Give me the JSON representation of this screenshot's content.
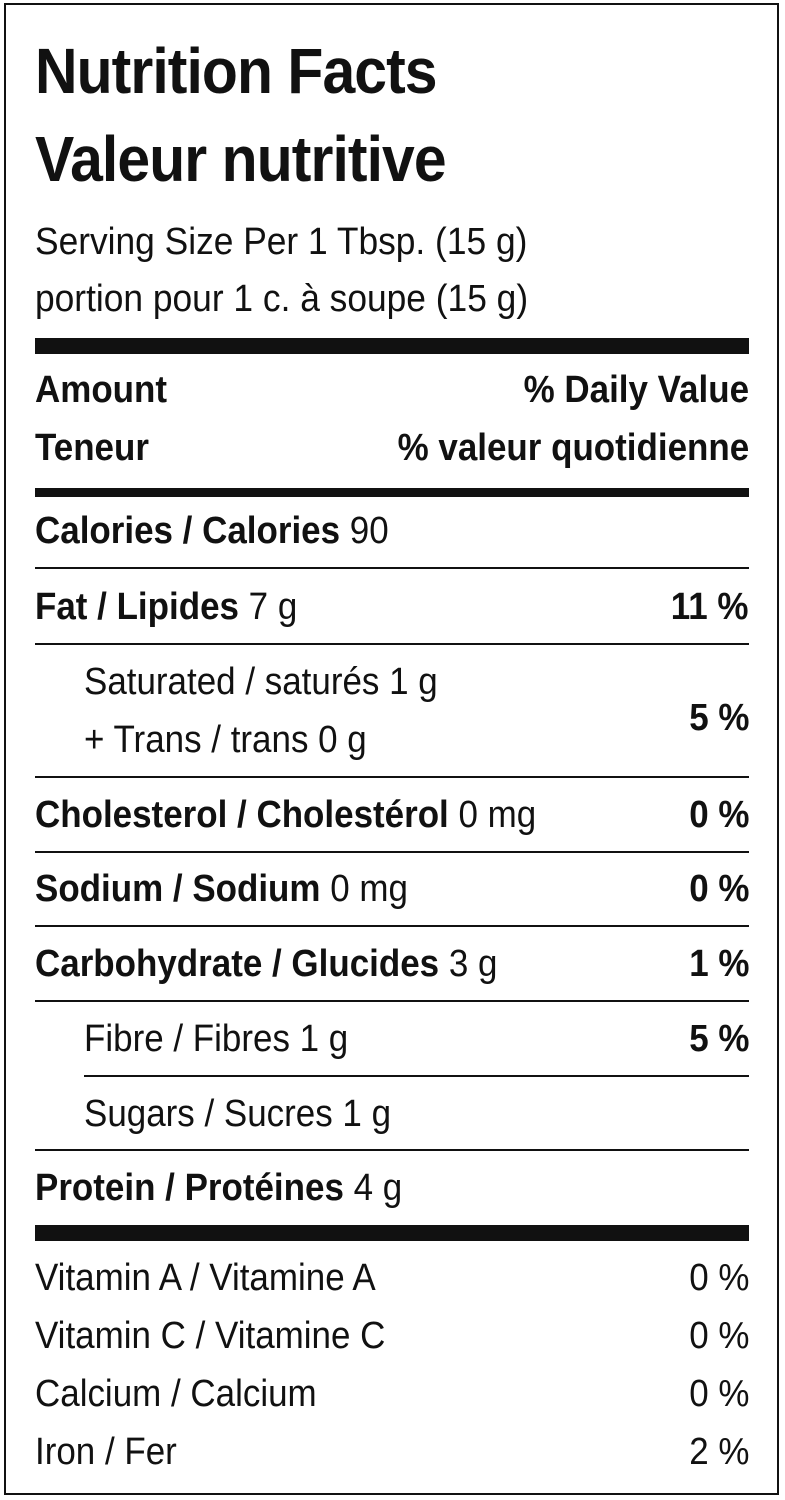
{
  "title_en": "Nutrition Facts",
  "title_fr": "Valeur nutritive",
  "serving_en": "Serving Size Per 1 Tbsp. (15 g)",
  "serving_fr": "portion pour 1 c. à soupe (15 g)",
  "header": {
    "amount_en": "Amount",
    "amount_fr": "Teneur",
    "dv_en": "% Daily Value",
    "dv_fr": "% valeur quotidienne"
  },
  "calories": {
    "label": "Calories / Calories",
    "value": "90"
  },
  "fat": {
    "label": "Fat / Lipides",
    "amount": "7 g",
    "dv": "11 %"
  },
  "saturated": {
    "label": "Saturated / saturés",
    "amount": "1 g"
  },
  "trans": {
    "label": "+ Trans / trans",
    "amount": "0 g"
  },
  "sat_trans_dv": "5 %",
  "cholesterol": {
    "label": "Cholesterol / Cholestérol",
    "amount": "0 mg",
    "dv": "0 %"
  },
  "sodium": {
    "label": "Sodium / Sodium",
    "amount": "0 mg",
    "dv": "0 %"
  },
  "carbohydrate": {
    "label": "Carbohydrate / Glucides",
    "amount": "3 g",
    "dv": "1 %"
  },
  "fibre": {
    "label": "Fibre / Fibres",
    "amount": "1 g",
    "dv": "5 %"
  },
  "sugars": {
    "label": "Sugars / Sucres",
    "amount": "1 g"
  },
  "protein": {
    "label": "Protein / Protéines",
    "amount": "4 g"
  },
  "vitamins": [
    {
      "label": "Vitamin A / Vitamine A",
      "dv": "0 %"
    },
    {
      "label": "Vitamin C / Vitamine C",
      "dv": "0 %"
    },
    {
      "label": "Calcium / Calcium",
      "dv": "0 %"
    },
    {
      "label": "Iron / Fer",
      "dv": "2 %"
    }
  ]
}
